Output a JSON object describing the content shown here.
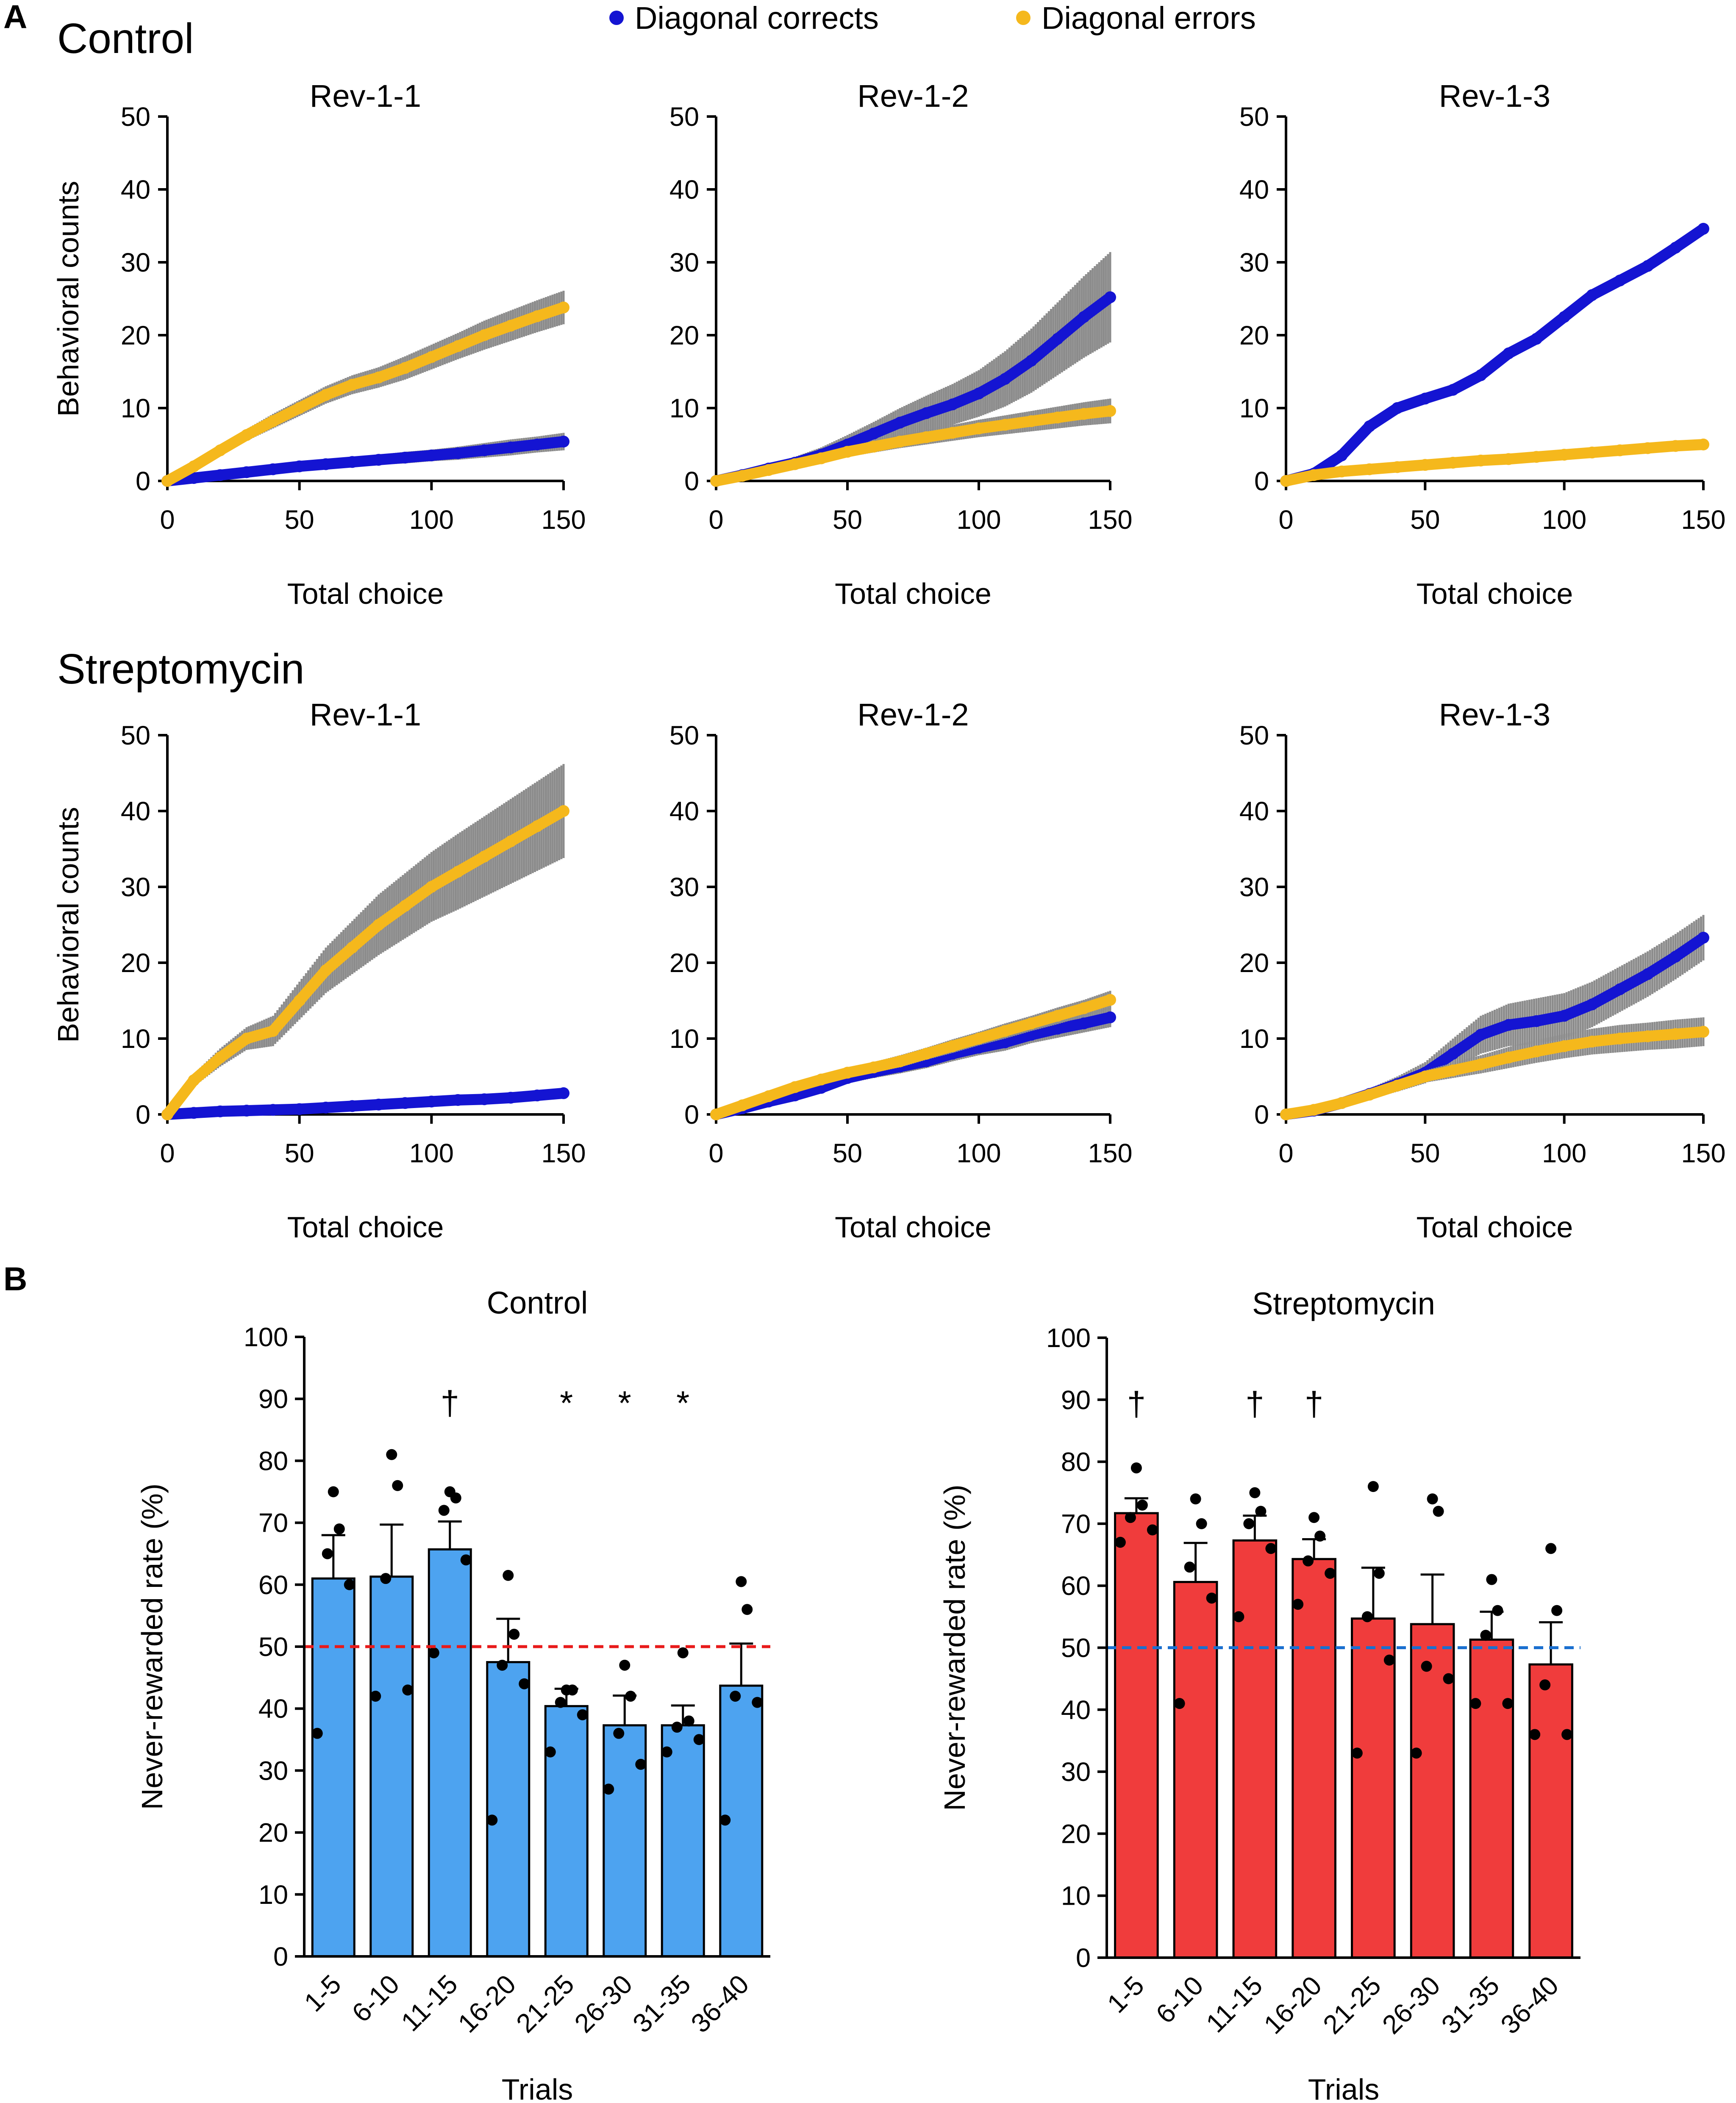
{
  "panel_a_label": "A",
  "panel_b_label": "B",
  "legend": [
    {
      "label": "Diagonal corrects",
      "color": "#1414d2"
    },
    {
      "label": "Diagonal errors",
      "color": "#f5b81c"
    }
  ],
  "groups_a": [
    "Control",
    "Streptomycin"
  ],
  "colors": {
    "corrects": "#1414d2",
    "errors": "#f5b81c",
    "errbar": "#8c8c8c",
    "control_bar": "#4da3f0",
    "strep_bar": "#f03c3c",
    "control_line": "#e81a1a",
    "strep_line": "#1a6fcf"
  },
  "chart_data": [
    {
      "type": "line",
      "group": "Control",
      "title": "Rev-1-1",
      "xlabel": "Total choice",
      "ylabel": "Behavioral counts",
      "xlim": [
        0,
        150
      ],
      "ylim": [
        0,
        50
      ],
      "x": [
        0,
        10,
        20,
        30,
        40,
        50,
        60,
        70,
        80,
        90,
        100,
        110,
        120,
        130,
        140,
        150
      ],
      "series": [
        {
          "name": "Diagonal corrects",
          "values": [
            0,
            0.4,
            0.8,
            1.2,
            1.6,
            2.0,
            2.3,
            2.6,
            2.9,
            3.2,
            3.5,
            3.8,
            4.2,
            4.6,
            5.0,
            5.4
          ],
          "error": [
            0,
            0.3,
            0.4,
            0.5,
            0.5,
            0.6,
            0.6,
            0.7,
            0.7,
            0.8,
            0.8,
            0.9,
            1.0,
            1.1,
            1.1,
            1.2
          ]
        },
        {
          "name": "Diagonal errors",
          "values": [
            0,
            2.0,
            4.2,
            6.3,
            8.2,
            10.0,
            11.8,
            13.2,
            14.2,
            15.5,
            17.0,
            18.5,
            20.0,
            21.3,
            22.6,
            23.8
          ],
          "error": [
            0,
            0.4,
            0.6,
            0.8,
            1.0,
            1.1,
            1.2,
            1.3,
            1.4,
            1.6,
            1.7,
            1.8,
            2.0,
            2.1,
            2.2,
            2.3
          ]
        }
      ]
    },
    {
      "type": "line",
      "group": "Control",
      "title": "Rev-1-2",
      "xlabel": "Total choice",
      "ylabel": "",
      "xlim": [
        0,
        150
      ],
      "ylim": [
        0,
        50
      ],
      "x": [
        0,
        10,
        20,
        30,
        40,
        50,
        60,
        70,
        80,
        90,
        100,
        110,
        120,
        130,
        140,
        150
      ],
      "series": [
        {
          "name": "Diagonal corrects",
          "values": [
            0,
            0.8,
            1.7,
            2.5,
            3.6,
            5.0,
            6.5,
            8.0,
            9.3,
            10.5,
            12.0,
            14.0,
            16.5,
            19.5,
            22.5,
            25.2
          ],
          "error": [
            0,
            0.4,
            0.6,
            0.8,
            1.0,
            1.3,
            1.6,
            2.0,
            2.4,
            2.8,
            3.2,
            3.8,
            4.4,
            5.0,
            5.6,
            6.2
          ]
        },
        {
          "name": "Diagonal errors",
          "values": [
            0,
            0.7,
            1.5,
            2.3,
            3.1,
            4.0,
            4.7,
            5.4,
            6.0,
            6.6,
            7.2,
            7.7,
            8.2,
            8.7,
            9.2,
            9.6
          ],
          "error": [
            0,
            0.3,
            0.4,
            0.5,
            0.6,
            0.7,
            0.8,
            0.9,
            1.0,
            1.1,
            1.2,
            1.3,
            1.4,
            1.5,
            1.6,
            1.7
          ]
        }
      ]
    },
    {
      "type": "line",
      "group": "Control",
      "title": "Rev-1-3",
      "xlabel": "Total choice",
      "ylabel": "",
      "xlim": [
        0,
        150
      ],
      "ylim": [
        0,
        50
      ],
      "x": [
        0,
        10,
        20,
        30,
        40,
        50,
        60,
        70,
        80,
        90,
        100,
        110,
        120,
        130,
        140,
        150
      ],
      "series": [
        {
          "name": "Diagonal corrects",
          "values": [
            0,
            1.0,
            3.5,
            7.5,
            10.0,
            11.3,
            12.5,
            14.5,
            17.5,
            19.5,
            22.5,
            25.5,
            27.5,
            29.5,
            32.0,
            34.6
          ],
          "error": [
            0,
            0.3,
            0.5,
            0.6,
            0.6,
            0.6,
            0.6,
            0.6,
            0.6,
            0.6,
            0.6,
            0.5,
            0.5,
            0.5,
            0.5,
            0.5
          ]
        },
        {
          "name": "Diagonal errors",
          "values": [
            0,
            0.8,
            1.3,
            1.6,
            1.9,
            2.2,
            2.5,
            2.8,
            3.0,
            3.3,
            3.6,
            3.9,
            4.2,
            4.5,
            4.8,
            5.0
          ],
          "error": [
            0,
            0.2,
            0.3,
            0.3,
            0.3,
            0.3,
            0.3,
            0.3,
            0.3,
            0.3,
            0.3,
            0.3,
            0.3,
            0.3,
            0.3,
            0.3
          ]
        }
      ]
    },
    {
      "type": "line",
      "group": "Streptomycin",
      "title": "Rev-1-1",
      "xlabel": "Total choice",
      "ylabel": "Behavioral counts",
      "xlim": [
        0,
        150
      ],
      "ylim": [
        0,
        50
      ],
      "x": [
        0,
        10,
        20,
        30,
        40,
        50,
        60,
        70,
        80,
        90,
        100,
        110,
        120,
        130,
        140,
        150
      ],
      "series": [
        {
          "name": "Diagonal corrects",
          "values": [
            0,
            0.2,
            0.4,
            0.5,
            0.6,
            0.7,
            0.9,
            1.1,
            1.3,
            1.5,
            1.7,
            1.9,
            2.0,
            2.2,
            2.5,
            2.8
          ],
          "error": [
            0,
            0.1,
            0.2,
            0.2,
            0.2,
            0.3,
            0.3,
            0.3,
            0.4,
            0.4,
            0.4,
            0.4,
            0.5,
            0.5,
            0.5,
            0.5
          ]
        },
        {
          "name": "Diagonal errors",
          "values": [
            0,
            4.5,
            7.5,
            10.0,
            11.0,
            15.0,
            19.0,
            22.0,
            25.0,
            27.5,
            30.0,
            32.0,
            34.0,
            36.0,
            38.0,
            40.0
          ],
          "error": [
            0,
            0.8,
            1.2,
            1.5,
            2.0,
            2.5,
            3.0,
            3.5,
            4.0,
            4.3,
            4.6,
            5.0,
            5.3,
            5.6,
            5.9,
            6.2
          ]
        }
      ]
    },
    {
      "type": "line",
      "group": "Streptomycin",
      "title": "Rev-1-2",
      "xlabel": "Total choice",
      "ylabel": "",
      "xlim": [
        0,
        150
      ],
      "ylim": [
        0,
        50
      ],
      "x": [
        0,
        10,
        20,
        30,
        40,
        50,
        60,
        70,
        80,
        90,
        100,
        110,
        120,
        130,
        140,
        150
      ],
      "series": [
        {
          "name": "Diagonal corrects",
          "values": [
            0,
            0.8,
            1.7,
            2.5,
            3.5,
            4.8,
            5.6,
            6.3,
            7.0,
            8.0,
            8.8,
            9.5,
            10.5,
            11.3,
            12.0,
            12.8
          ],
          "error": [
            0,
            0.3,
            0.4,
            0.5,
            0.6,
            0.7,
            0.8,
            0.9,
            0.9,
            1.0,
            1.0,
            1.1,
            1.1,
            1.2,
            1.2,
            1.3
          ]
        },
        {
          "name": "Diagonal errors",
          "values": [
            0,
            1.2,
            2.4,
            3.6,
            4.6,
            5.5,
            6.2,
            7.0,
            8.0,
            9.0,
            10.0,
            11.0,
            12.0,
            13.0,
            14.0,
            15.1
          ],
          "error": [
            0,
            0.3,
            0.4,
            0.5,
            0.6,
            0.7,
            0.7,
            0.8,
            0.8,
            0.9,
            0.9,
            1.0,
            1.0,
            1.1,
            1.1,
            1.2
          ]
        }
      ]
    },
    {
      "type": "line",
      "group": "Streptomycin",
      "title": "Rev-1-3",
      "xlabel": "Total choice",
      "ylabel": "",
      "xlim": [
        0,
        150
      ],
      "ylim": [
        0,
        50
      ],
      "x": [
        0,
        10,
        20,
        30,
        40,
        50,
        60,
        70,
        80,
        90,
        100,
        110,
        120,
        130,
        140,
        150
      ],
      "series": [
        {
          "name": "Diagonal corrects",
          "values": [
            0,
            0.5,
            1.5,
            2.7,
            4.0,
            5.5,
            8.0,
            10.5,
            11.8,
            12.3,
            13.0,
            14.5,
            16.5,
            18.5,
            20.8,
            23.3
          ],
          "error": [
            0,
            0.3,
            0.5,
            0.7,
            1.0,
            1.4,
            2.0,
            2.5,
            2.8,
            3.0,
            3.0,
            3.0,
            3.0,
            3.0,
            3.0,
            3.0
          ]
        },
        {
          "name": "Diagonal errors",
          "values": [
            0,
            0.6,
            1.5,
            2.6,
            3.8,
            5.0,
            5.8,
            6.6,
            7.5,
            8.3,
            9.0,
            9.6,
            10.0,
            10.3,
            10.6,
            10.9
          ],
          "error": [
            0,
            0.3,
            0.4,
            0.5,
            0.6,
            0.8,
            1.0,
            1.2,
            1.4,
            1.5,
            1.6,
            1.7,
            1.8,
            1.8,
            1.9,
            1.9
          ]
        }
      ]
    },
    {
      "type": "bar",
      "title": "Control",
      "xlabel": "Trials",
      "ylabel": "Never-rewarded rate (%)",
      "ylim": [
        0,
        100
      ],
      "categories": [
        "1-5",
        "6-10",
        "11-15",
        "16-20",
        "21-25",
        "26-30",
        "31-35",
        "36-40"
      ],
      "values": [
        61,
        61.3,
        65.7,
        47.5,
        40.4,
        37.3,
        37.3,
        43.7
      ],
      "sem": [
        7,
        8.4,
        4.5,
        7,
        2.8,
        4.8,
        3.2,
        6.8
      ],
      "points": [
        [
          36,
          60,
          65,
          69,
          75
        ],
        [
          42,
          43,
          61,
          76,
          81
        ],
        [
          49,
          64,
          72,
          74,
          75
        ],
        [
          22,
          44,
          47,
          52,
          61.5
        ],
        [
          33,
          39,
          41,
          43,
          43
        ],
        [
          27,
          31,
          36,
          42,
          47
        ],
        [
          33,
          35,
          37,
          38,
          49
        ],
        [
          22,
          41,
          42,
          56,
          60.5
        ]
      ],
      "annotations": [
        "",
        "",
        "†",
        "",
        "*",
        "*",
        "*",
        ""
      ],
      "reference_line": 50
    },
    {
      "type": "bar",
      "title": "Streptomycin",
      "xlabel": "Trials",
      "ylabel": "Never-rewarded rate (%)",
      "ylim": [
        0,
        100
      ],
      "categories": [
        "1-5",
        "6-10",
        "11-15",
        "16-20",
        "21-25",
        "26-30",
        "31-35",
        "36-40"
      ],
      "values": [
        71.7,
        60.6,
        67.3,
        64.3,
        54.7,
        53.8,
        51.3,
        47.3
      ],
      "sem": [
        2.4,
        6.3,
        4,
        3.2,
        8.2,
        8,
        4.5,
        6.8
      ],
      "points": [
        [
          67,
          69,
          71,
          73,
          79
        ],
        [
          41,
          58,
          63,
          70,
          74
        ],
        [
          55,
          66,
          70,
          72,
          75
        ],
        [
          57,
          62,
          64,
          68,
          71
        ],
        [
          33,
          48,
          55,
          62,
          76
        ],
        [
          33,
          45,
          47,
          72,
          74
        ],
        [
          41,
          41,
          52,
          56,
          61
        ],
        [
          36,
          36,
          44,
          56,
          66
        ]
      ],
      "annotations": [
        "†",
        "",
        "†",
        "†",
        "",
        "",
        "",
        ""
      ],
      "reference_line": 50
    }
  ]
}
